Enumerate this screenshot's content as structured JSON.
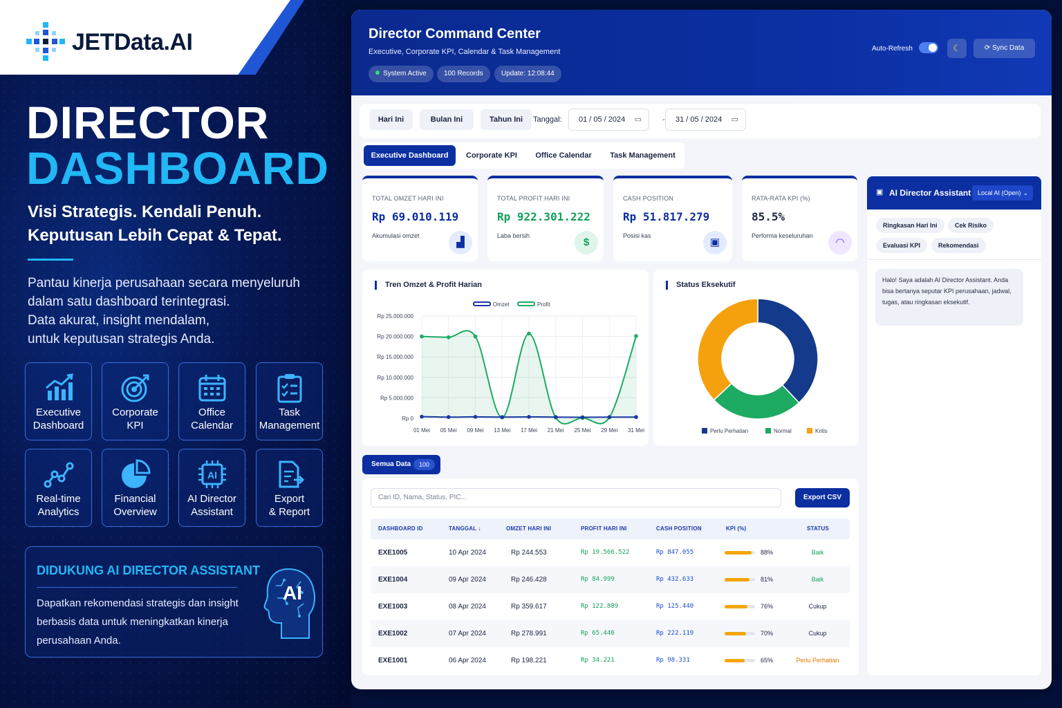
{
  "brand": {
    "logo_text": "JETData.AI"
  },
  "hero": {
    "title_line1": "DIRECTOR",
    "title_line2": "DASHBOARD",
    "tagline1": "Visi Strategis. Kendali Penuh.",
    "tagline2": "Keputusan Lebih Cepat & Tepat.",
    "desc": [
      "Pantau kinerja perusahaan secara menyeluruh",
      "dalam satu dashboard terintegrasi.",
      "Data akurat, insight mendalam,",
      "untuk keputusan strategis Anda."
    ]
  },
  "features": [
    {
      "line1": "Executive",
      "line2": "Dashboard",
      "icon": "bar-chart-icon"
    },
    {
      "line1": "Corporate",
      "line2": "KPI",
      "icon": "target-icon"
    },
    {
      "line1": "Office",
      "line2": "Calendar",
      "icon": "calendar-icon"
    },
    {
      "line1": "Task",
      "line2": "Management",
      "icon": "checklist-icon"
    },
    {
      "line1": "Real-time",
      "line2": "Analytics",
      "icon": "line-chart-icon"
    },
    {
      "line1": "Financial",
      "line2": "Overview",
      "icon": "pie-chart-icon"
    },
    {
      "line1": "AI Director",
      "line2": "Assistant",
      "icon": "ai-chip-icon"
    },
    {
      "line1": "Export",
      "line2": "& Report",
      "icon": "export-document-icon"
    }
  ],
  "ai_promo": {
    "title": "DIDUKUNG AI DIRECTOR ASSISTANT",
    "desc": [
      "Dapatkan rekomendasi strategis dan insight",
      "berbasis data untuk meningkatkan kinerja",
      "perusahaan Anda."
    ],
    "badge": "AI"
  },
  "header": {
    "title": "Director Command Center",
    "subtitle": "Executive, Corporate KPI, Calendar & Task Management",
    "pills": [
      "System Active",
      "100 Records",
      "Update: 12:08:44"
    ],
    "auto_refresh_label": "Auto-Refresh",
    "auto_refresh_on": true,
    "sync_label": "Sync Data"
  },
  "filters": {
    "buttons": [
      "Hari Ini",
      "Bulan Ini",
      "Tahun Ini"
    ],
    "date_label": "Tanggal:",
    "date_from": "01 / 05 / 2024",
    "date_to": "31 / 05 / 2024",
    "separator": "-"
  },
  "tabs": [
    "Executive Dashboard",
    "Corporate KPI",
    "Office Calendar",
    "Task Management"
  ],
  "active_tab": 0,
  "kpis": [
    {
      "label": "TOTAL OMZET HARI INI",
      "value": "Rp 69.010.119",
      "sub": "Akumulasi omzet",
      "icon": "chart-icon",
      "value_color": "#0b2ea0"
    },
    {
      "label": "TOTAL PROFIT HARI INI",
      "value": "Rp 922.301.222",
      "sub": "Laba bersih",
      "icon": "money-bag-icon",
      "value_color": "#12a05a"
    },
    {
      "label": "CASH POSITION",
      "value": "Rp 51.817.279",
      "sub": "Posisi kas",
      "icon": "wallet-icon",
      "value_color": "#0b2ea0"
    },
    {
      "label": "RATA-RATA KPI (%)",
      "value": "85.5%",
      "sub": "Performa keseluruhan",
      "icon": "gauge-icon",
      "value_color": "#1b2440"
    }
  ],
  "chart_data": [
    {
      "type": "line",
      "title": "Tren Omzet & Profit Harian",
      "x": [
        "01 Mei",
        "05 Mei",
        "09 Mei",
        "13 Mei",
        "17 Mei",
        "21 Mei",
        "25 Mei",
        "29 Mei",
        "31 Mei"
      ],
      "y_ticks": [
        "Rp 25.000.000",
        "Rp 20.000.000",
        "Rp 15.000.000",
        "Rp 10.000.000",
        "Rp 5.000.000",
        "Rp 0"
      ],
      "ylim": [
        0,
        25000000
      ],
      "series": [
        {
          "name": "Omzet",
          "color": "#1a3aa0",
          "values": [
            400000,
            300000,
            350000,
            300000,
            350000,
            300000,
            250000,
            300000,
            300000
          ]
        },
        {
          "name": "Profit",
          "color": "#1daa63",
          "values": [
            20000000,
            19800000,
            20000000,
            200000,
            20700000,
            200000,
            100000,
            200000,
            20100000
          ]
        }
      ],
      "legend": "top-center",
      "grid": true
    },
    {
      "type": "pie",
      "title": "Status Eksekutif",
      "categories": [
        "Perlu Perhatian",
        "Normal",
        "Kritis"
      ],
      "values": [
        38,
        25,
        37
      ],
      "colors": [
        "#143a8c",
        "#1daa63",
        "#f5a10e"
      ],
      "legend": "bottom"
    }
  ],
  "assistant": {
    "title": "AI Director Assistant",
    "mode": "Local AI (Open)",
    "chips": [
      "Ringkasan Hari Ini",
      "Cek Risiko",
      "Evaluasi KPI",
      "Rekomendasi"
    ],
    "message": "Halo! Saya adalah AI Director Assistant. Anda bisa bertanya seputar KPI perusahaan, jadwal, tugas, atau ringkasan eksekutif."
  },
  "table": {
    "filter_label": "Semua Data",
    "filter_count": "100",
    "search_placeholder": "Cari ID, Nama, Status, PIC...",
    "export_label": "Export CSV",
    "columns": [
      "DASHBOARD ID",
      "TANGGAL ↓",
      "OMZET HARI INI",
      "PROFIT HARI INI",
      "CASH POSITION",
      "KPI (%)",
      "STATUS"
    ],
    "rows": [
      {
        "id": "EXE1005",
        "date": "10 Apr 2024",
        "omzet": "Rp 244.553",
        "profit": "Rp 19.566.522",
        "cash": "Rp 847.055",
        "kpi": 88,
        "kpi_label": "88%",
        "status": "Baik",
        "status_color": "#12a05a"
      },
      {
        "id": "EXE1004",
        "date": "09 Apr 2024",
        "omzet": "Rp 246.428",
        "profit": "Rp 84.999",
        "cash": "Rp 432.633",
        "kpi": 81,
        "kpi_label": "81%",
        "status": "Baik",
        "status_color": "#12a05a"
      },
      {
        "id": "EXE1003",
        "date": "08 Apr 2024",
        "omzet": "Rp 359.617",
        "profit": "Rp 122.889",
        "cash": "Rp 125.440",
        "kpi": 76,
        "kpi_label": "76%",
        "status": "Cukup",
        "status_color": "#1b2440"
      },
      {
        "id": "EXE1002",
        "date": "07 Apr 2024",
        "omzet": "Rp 278.991",
        "profit": "Rp 65.440",
        "cash": "Rp 222.119",
        "kpi": 70,
        "kpi_label": "70%",
        "status": "Cukup",
        "status_color": "#1b2440"
      },
      {
        "id": "EXE1001",
        "date": "06 Apr 2024",
        "omzet": "Rp 198.221",
        "profit": "Rp 34.221",
        "cash": "Rp 98.331",
        "kpi": 65,
        "kpi_label": "65%",
        "status": "Perlu Perhatian",
        "status_color": "#e07b00"
      }
    ]
  }
}
